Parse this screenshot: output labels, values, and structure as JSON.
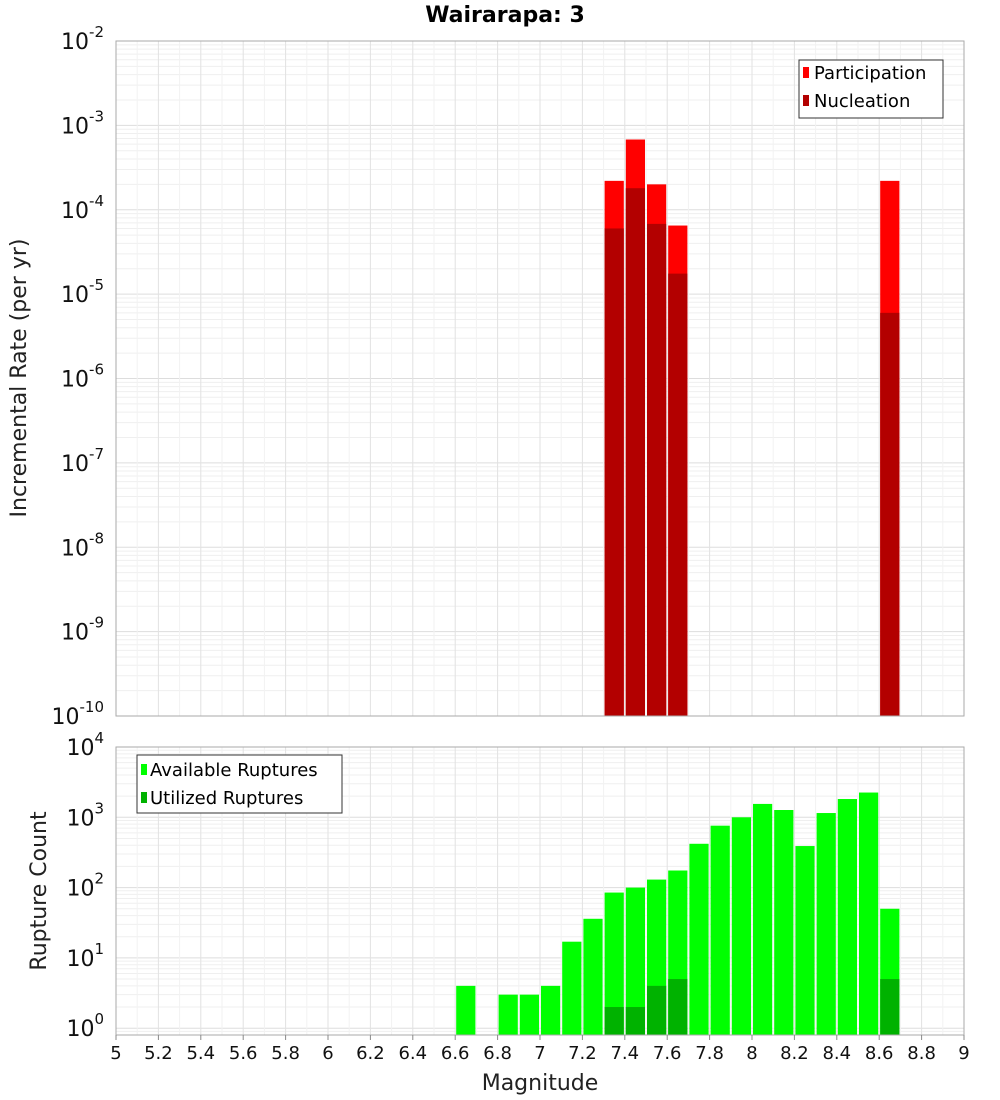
{
  "chart_data": [
    {
      "type": "bar",
      "title": "Wairarapa: 3",
      "xlabel": "",
      "ylabel": "Incremental Rate (per yr)",
      "y_scale": "log",
      "ylim": [
        1e-10,
        0.01
      ],
      "xlim": [
        5,
        9
      ],
      "grid": true,
      "legend_position": "top-right",
      "x": [
        7.35,
        7.45,
        7.55,
        7.65,
        8.65
      ],
      "series": [
        {
          "name": "Participation",
          "color": "#ff0000",
          "values": [
            0.00022,
            0.00068,
            0.0002,
            6.5e-05,
            0.00022
          ]
        },
        {
          "name": "Nucleation",
          "color": "#b30000",
          "values": [
            6e-05,
            0.00018,
            6.8e-05,
            1.75e-05,
            6e-06
          ]
        }
      ],
      "y_ticks": [
        {
          "base": "10",
          "exp": "-10"
        },
        {
          "base": "10",
          "exp": "-9"
        },
        {
          "base": "10",
          "exp": "-8"
        },
        {
          "base": "10",
          "exp": "-7"
        },
        {
          "base": "10",
          "exp": "-6"
        },
        {
          "base": "10",
          "exp": "-5"
        },
        {
          "base": "10",
          "exp": "-4"
        },
        {
          "base": "10",
          "exp": "-3"
        },
        {
          "base": "10",
          "exp": "-2"
        }
      ]
    },
    {
      "type": "bar",
      "title": "",
      "xlabel": "Magnitude",
      "ylabel": "Rupture Count",
      "y_scale": "log",
      "ylim": [
        0.8,
        10000
      ],
      "xlim": [
        5,
        9
      ],
      "grid": true,
      "legend_position": "top-left",
      "x": [
        6.65,
        6.85,
        6.95,
        7.05,
        7.15,
        7.25,
        7.35,
        7.45,
        7.55,
        7.65,
        7.75,
        7.85,
        7.95,
        8.05,
        8.15,
        8.25,
        8.35,
        8.45,
        8.55,
        8.65
      ],
      "series": [
        {
          "name": "Available Ruptures",
          "color": "#00ff00",
          "values": [
            4,
            3,
            3,
            4,
            17,
            36,
            85,
            100,
            130,
            175,
            420,
            760,
            1000,
            1550,
            1270,
            390,
            1150,
            1820,
            2250,
            50
          ]
        },
        {
          "name": "Utilized Ruptures",
          "color": "#00b200",
          "values": [
            null,
            null,
            null,
            null,
            null,
            null,
            2,
            2,
            4,
            5,
            null,
            null,
            null,
            null,
            null,
            null,
            null,
            null,
            null,
            5
          ]
        }
      ],
      "y_ticks": [
        {
          "base": "10",
          "exp": "0"
        },
        {
          "base": "10",
          "exp": "1"
        },
        {
          "base": "10",
          "exp": "2"
        },
        {
          "base": "10",
          "exp": "3"
        },
        {
          "base": "10",
          "exp": "4"
        }
      ],
      "x_ticks": [
        "5",
        "5.2",
        "5.4",
        "5.6",
        "5.8",
        "6",
        "6.2",
        "6.4",
        "6.6",
        "6.8",
        "7",
        "7.2",
        "7.4",
        "7.6",
        "7.8",
        "8",
        "8.2",
        "8.4",
        "8.6",
        "8.8",
        "9"
      ]
    }
  ]
}
